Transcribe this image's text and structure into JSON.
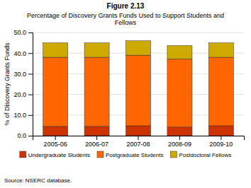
{
  "chart_data": {
    "type": "bar",
    "stacked": true,
    "title": "Figure 2.13",
    "subtitle": "Percentage of Discovery Grants Funds Used to Support Students and\nFellows",
    "categories": [
      "2005-06",
      "2006-07",
      "2007-08",
      "2008-09",
      "2009-10"
    ],
    "series": [
      {
        "name": "Undergraduate Students",
        "color": "#CC3300",
        "values": [
          4.5,
          4.5,
          4.8,
          4.2,
          4.8
        ]
      },
      {
        "name": "Postgraduate Students",
        "color": "#FF6600",
        "values": [
          33.5,
          33.5,
          34.2,
          33.0,
          33.2
        ]
      },
      {
        "name": "Postdoctoral Fellows",
        "color": "#CCAA00",
        "values": [
          7.0,
          7.0,
          7.0,
          6.5,
          7.0
        ]
      }
    ],
    "y_label": "% of Discovery Grants Funds",
    "ylim": [
      0,
      50
    ],
    "yticks": [
      {
        "value": 0,
        "label": "0.0"
      },
      {
        "value": 10,
        "label": "10.0"
      },
      {
        "value": 20,
        "label": "20.0"
      },
      {
        "value": 30,
        "label": "30.0"
      },
      {
        "value": 40,
        "label": "40.0"
      },
      {
        "value": 50,
        "label": "50.0"
      }
    ],
    "grid": true,
    "legend": "bottom",
    "annotations": [
      "Source: NSERC database."
    ]
  }
}
